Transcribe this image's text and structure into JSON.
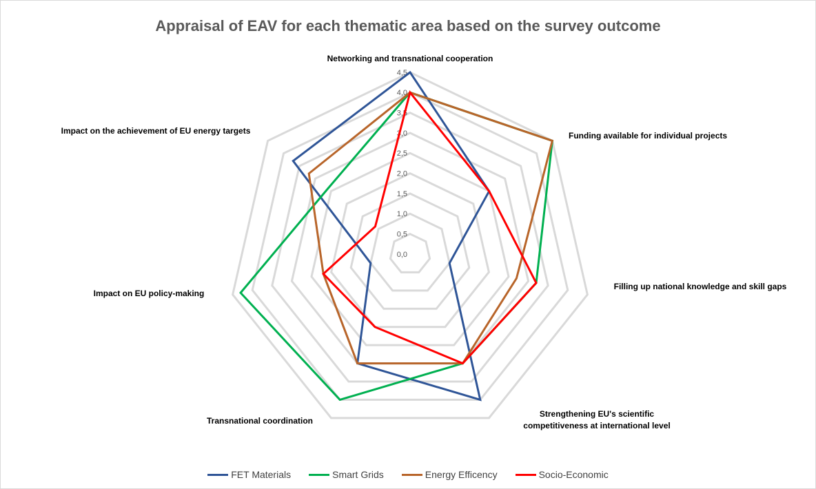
{
  "chart_data": {
    "type": "radar",
    "title": "Appraisal of EAV for each thematic area based on the survey outcome",
    "categories": [
      "Networking and transnational cooperation",
      "Funding available for individual projects",
      "Filling up national knowledge and skill gaps",
      "Strengthening EU's scientific competitiveness at international level",
      "Transnational coordination",
      "Impact on EU policy-making",
      "Impact on the achievement of EU energy targets"
    ],
    "series": [
      {
        "name": "FET Materials",
        "color": "#2f5597",
        "values": [
          4.5,
          2.5,
          1.0,
          4.0,
          3.0,
          1.0,
          3.7
        ]
      },
      {
        "name": "Smart Grids",
        "color": "#00b050",
        "values": [
          4.0,
          4.5,
          3.2,
          3.0,
          4.0,
          4.3,
          2.6
        ]
      },
      {
        "name": "Energy Efficency",
        "color": "#b8652a",
        "values": [
          4.0,
          4.5,
          2.7,
          3.0,
          3.0,
          2.2,
          3.2
        ]
      },
      {
        "name": "Socio-Economic",
        "color": "#ff0000",
        "values": [
          4.0,
          2.5,
          3.2,
          3.0,
          2.0,
          2.2,
          1.1
        ]
      }
    ],
    "ylim": [
      0,
      4.5
    ],
    "yticks": [
      {
        "value": 0,
        "label": "0,0"
      },
      {
        "value": 0.5,
        "label": "0,5"
      },
      {
        "value": 1,
        "label": "1,0"
      },
      {
        "value": 1.5,
        "label": "1,5"
      },
      {
        "value": 2,
        "label": "2,0"
      },
      {
        "value": 2.5,
        "label": "2,5"
      },
      {
        "value": 3,
        "label": "3,0"
      },
      {
        "value": 3.5,
        "label": "3,5"
      },
      {
        "value": 4,
        "label": "4,0"
      },
      {
        "value": 4.5,
        "label": "4,5"
      }
    ],
    "grid": true,
    "legend": "bottom"
  }
}
